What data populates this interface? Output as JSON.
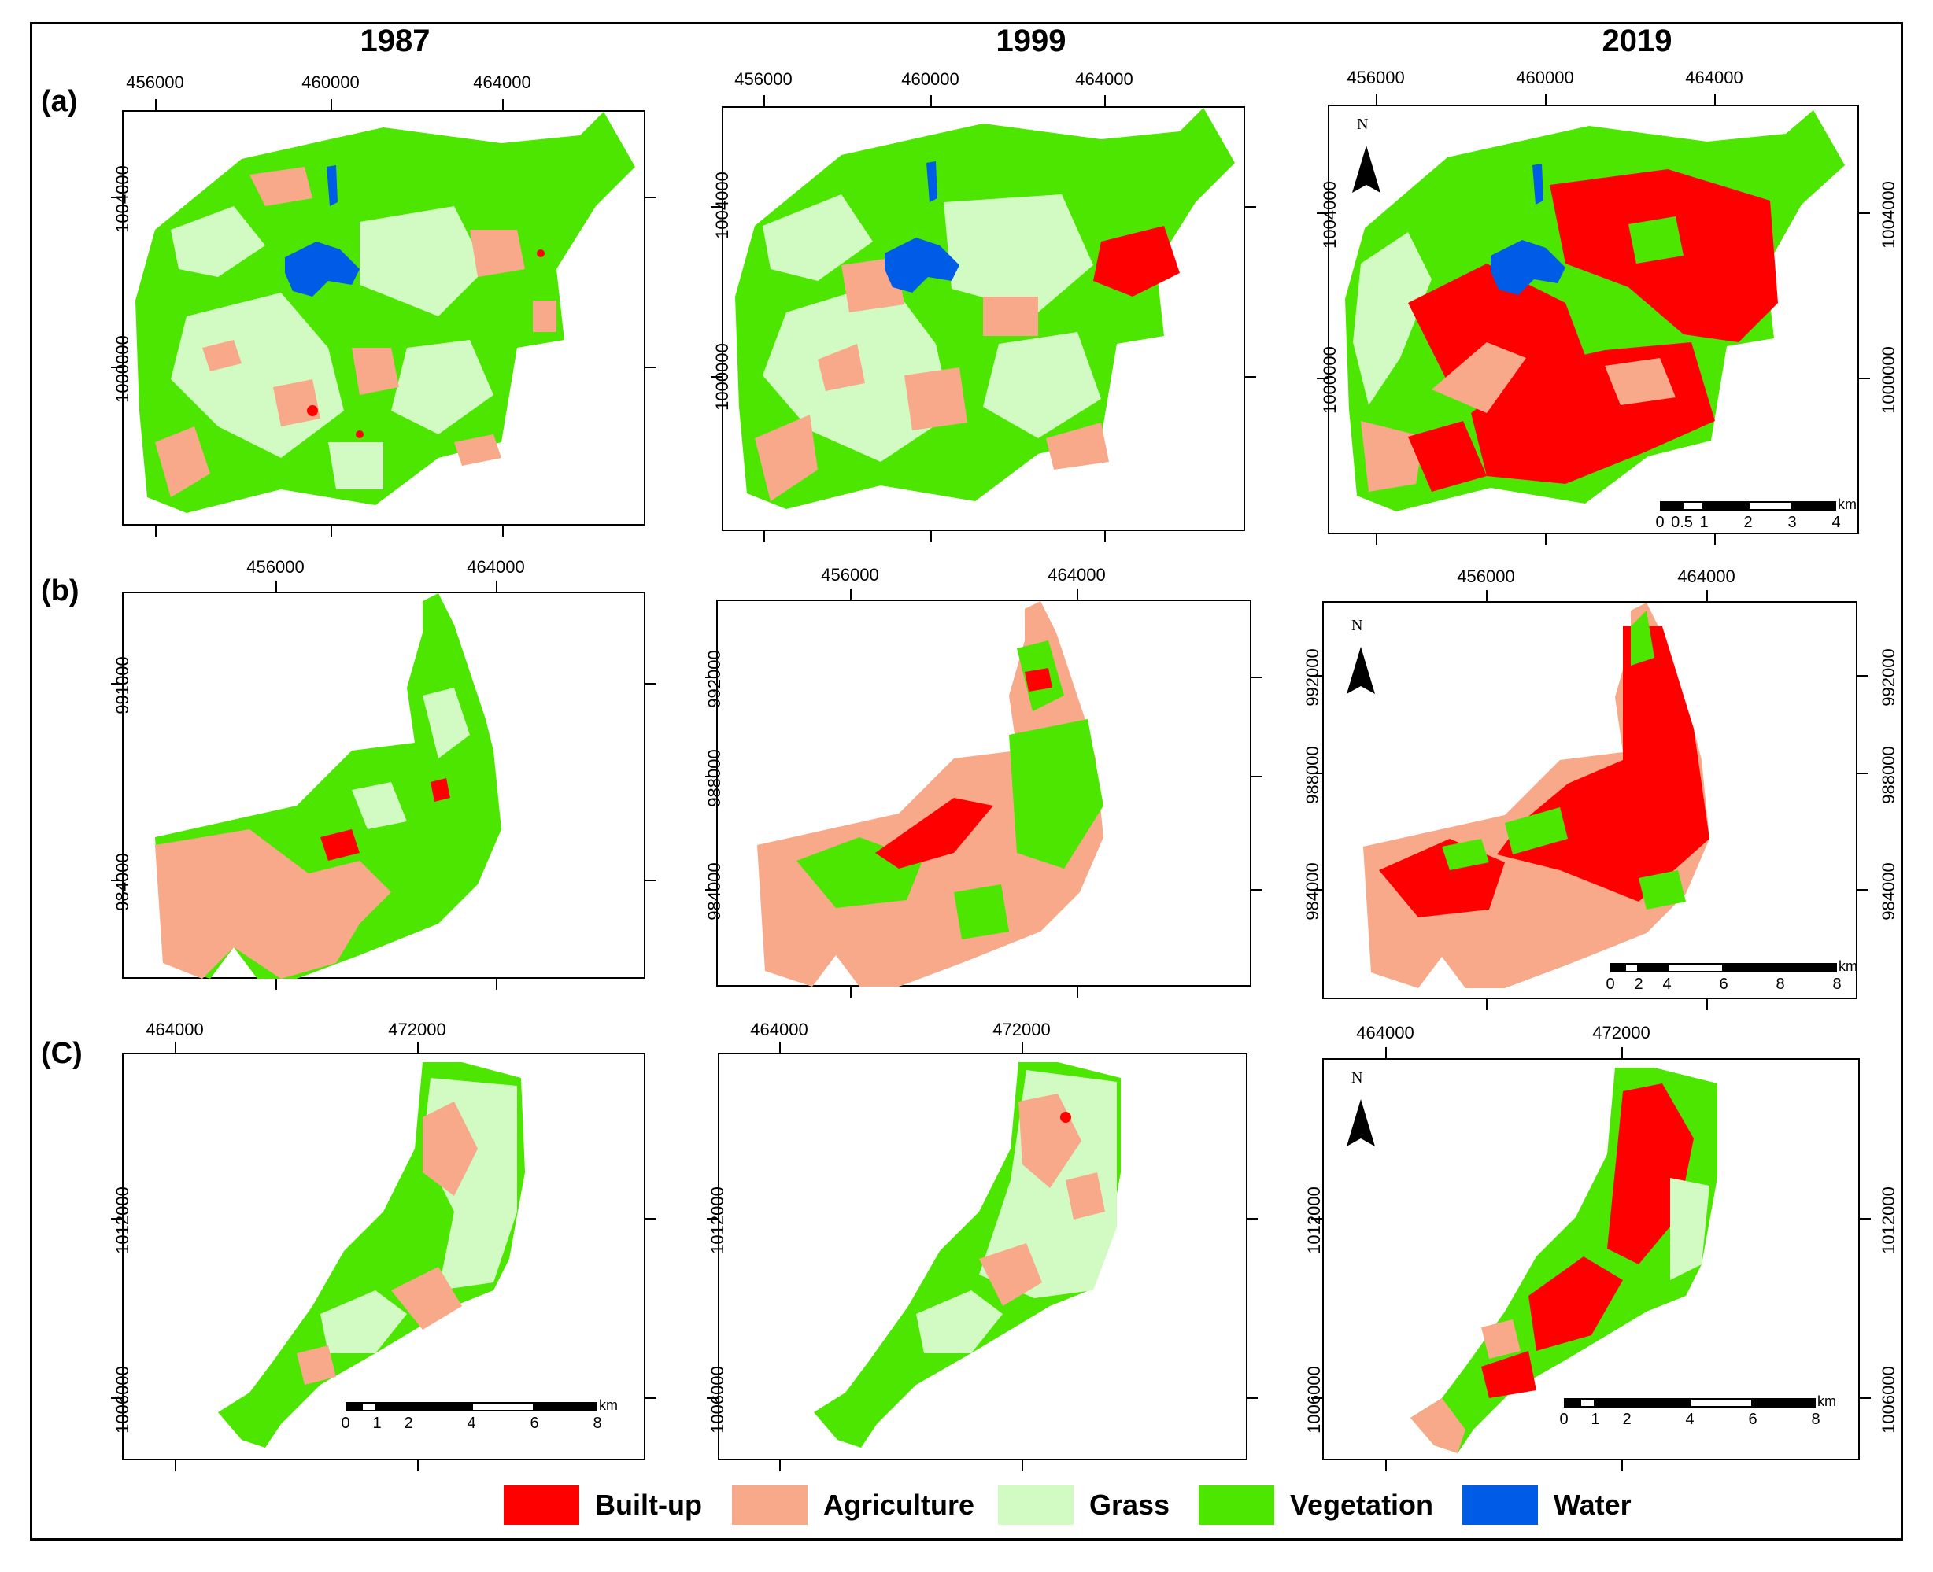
{
  "years": [
    "1987",
    "1999",
    "2019"
  ],
  "rows": [
    "(a)",
    "(b)",
    "(C)"
  ],
  "row_a": {
    "x_ticks": [
      "456000",
      "460000",
      "464000"
    ],
    "y_ticks": [
      "1004000",
      "1000000"
    ]
  },
  "row_b": {
    "x_ticks": [
      "456000",
      "464000"
    ],
    "y_ticks_1987": [
      "991000",
      "984000"
    ],
    "y_ticks": [
      "992000",
      "988000",
      "984000"
    ]
  },
  "row_c": {
    "x_ticks": [
      "464000",
      "472000"
    ],
    "y_ticks": [
      "1012000",
      "1006000"
    ]
  },
  "north_label": "N",
  "scale_a": {
    "labels": [
      "0",
      "0.5",
      "1",
      "2",
      "3",
      "4"
    ],
    "unit": "km"
  },
  "scale_b": {
    "labels": [
      "0",
      "1",
      "2",
      "4",
      "6",
      "8"
    ],
    "unit": "km"
  },
  "legend": [
    {
      "label": "Built-up",
      "color": "#ff0000"
    },
    {
      "label": "Agriculture",
      "color": "#f8a98a"
    },
    {
      "label": "Grass",
      "color": "#d2fbc4"
    },
    {
      "label": "Vegetation",
      "color": "#4ce600"
    },
    {
      "label": "Water",
      "color": "#005ce6"
    }
  ]
}
